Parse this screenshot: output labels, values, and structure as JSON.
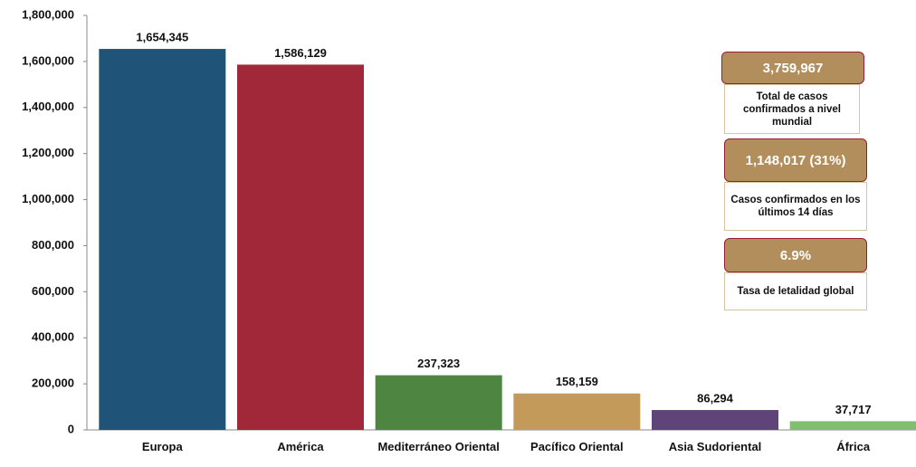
{
  "chart_data": {
    "type": "bar",
    "categories": [
      "Europa",
      "América",
      "Mediterráneo Oriental",
      "Pacífico Oriental",
      "Asia Sudoriental",
      "África"
    ],
    "values": [
      1654345,
      1586129,
      237323,
      158159,
      86294,
      37717
    ],
    "value_labels": [
      "1,654,345",
      "1,586,129",
      "237,323",
      "158,159",
      "86,294",
      "37,717"
    ],
    "colors": [
      "#1f5478",
      "#a12838",
      "#4e8540",
      "#c49a5a",
      "#5e4479",
      "#7fbf6e"
    ],
    "ylim": [
      0,
      1800000
    ],
    "yticks": [
      0,
      {
        "value": 200000,
        "label": "200,000"
      },
      {
        "value": 400000,
        "label": "400,000"
      },
      {
        "value": 600000,
        "label": "600,000"
      },
      {
        "value": 800000,
        "label": "800,000"
      },
      {
        "value": 1000000,
        "label": "1,000,000"
      },
      {
        "value": 1200000,
        "label": "1,200,000"
      },
      {
        "value": 1400000,
        "label": "1,400,000"
      },
      {
        "value": 1600000,
        "label": "1,600,000"
      },
      {
        "value": 1800000,
        "label": "1,800,000"
      }
    ],
    "annotations": [
      {
        "value_label": "3,759,967",
        "text": "Total de casos confirmados a nivel mundial"
      },
      {
        "value_label": "1,148,017 (31%)",
        "text": "Casos confirmados en los últimos 14 días"
      },
      {
        "value_label": "6.9%",
        "text": "Tasa de letalidad global"
      }
    ]
  }
}
